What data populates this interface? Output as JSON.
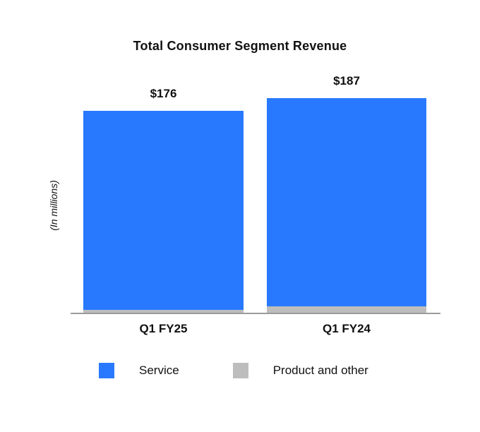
{
  "chart_data": {
    "type": "bar",
    "stacked": true,
    "title": "Total Consumer Segment Revenue",
    "ylabel": "(In millions)",
    "categories": [
      "Q1 FY25",
      "Q1 FY24"
    ],
    "totals": [
      176,
      187
    ],
    "total_labels": [
      "$176",
      "$187"
    ],
    "series": [
      {
        "name": "Service",
        "color": "#2979FF",
        "values": [
          173,
          181
        ]
      },
      {
        "name": "Product and other",
        "color": "#BDBDBD",
        "values": [
          3,
          6
        ]
      }
    ],
    "legend_position": "bottom",
    "grid": false,
    "ylim": [
      0,
      200
    ]
  },
  "legend": {
    "items": [
      {
        "label": "Service",
        "color": "#2979FF"
      },
      {
        "label": "Product and other",
        "color": "#BDBDBD"
      }
    ]
  },
  "colors": {
    "axis_line": "#9B9B9B",
    "text": "#111111"
  }
}
